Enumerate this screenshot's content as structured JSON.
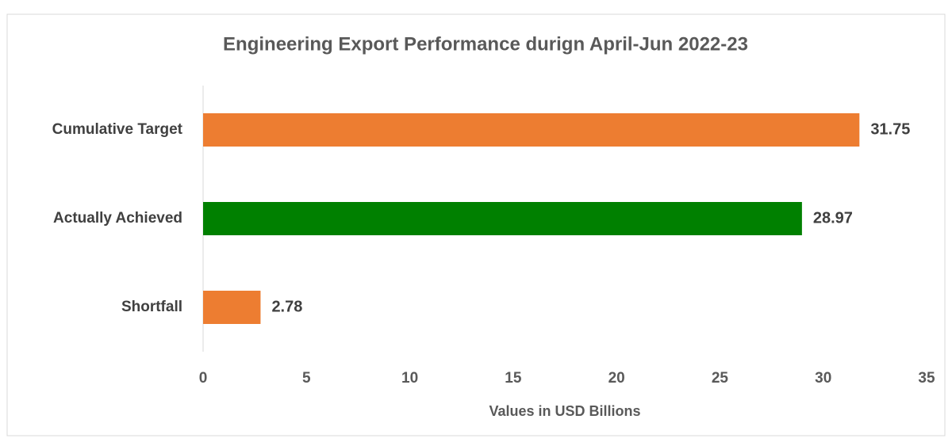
{
  "chart_data": {
    "type": "bar",
    "orientation": "horizontal",
    "title": "Engineering Export Performance durign April-Jun 2022-23",
    "x_label": "Values in USD Billions",
    "categories": [
      "Cumulative Target",
      "Actually Achieved",
      "Shortfall"
    ],
    "values": [
      31.75,
      28.97,
      2.78
    ],
    "colors": [
      "#ed7d31",
      "#008000",
      "#ed7d31"
    ],
    "xlim": [
      0,
      35
    ],
    "xticks": [
      0,
      5,
      10,
      15,
      20,
      25,
      30,
      35
    ],
    "grid": false
  }
}
